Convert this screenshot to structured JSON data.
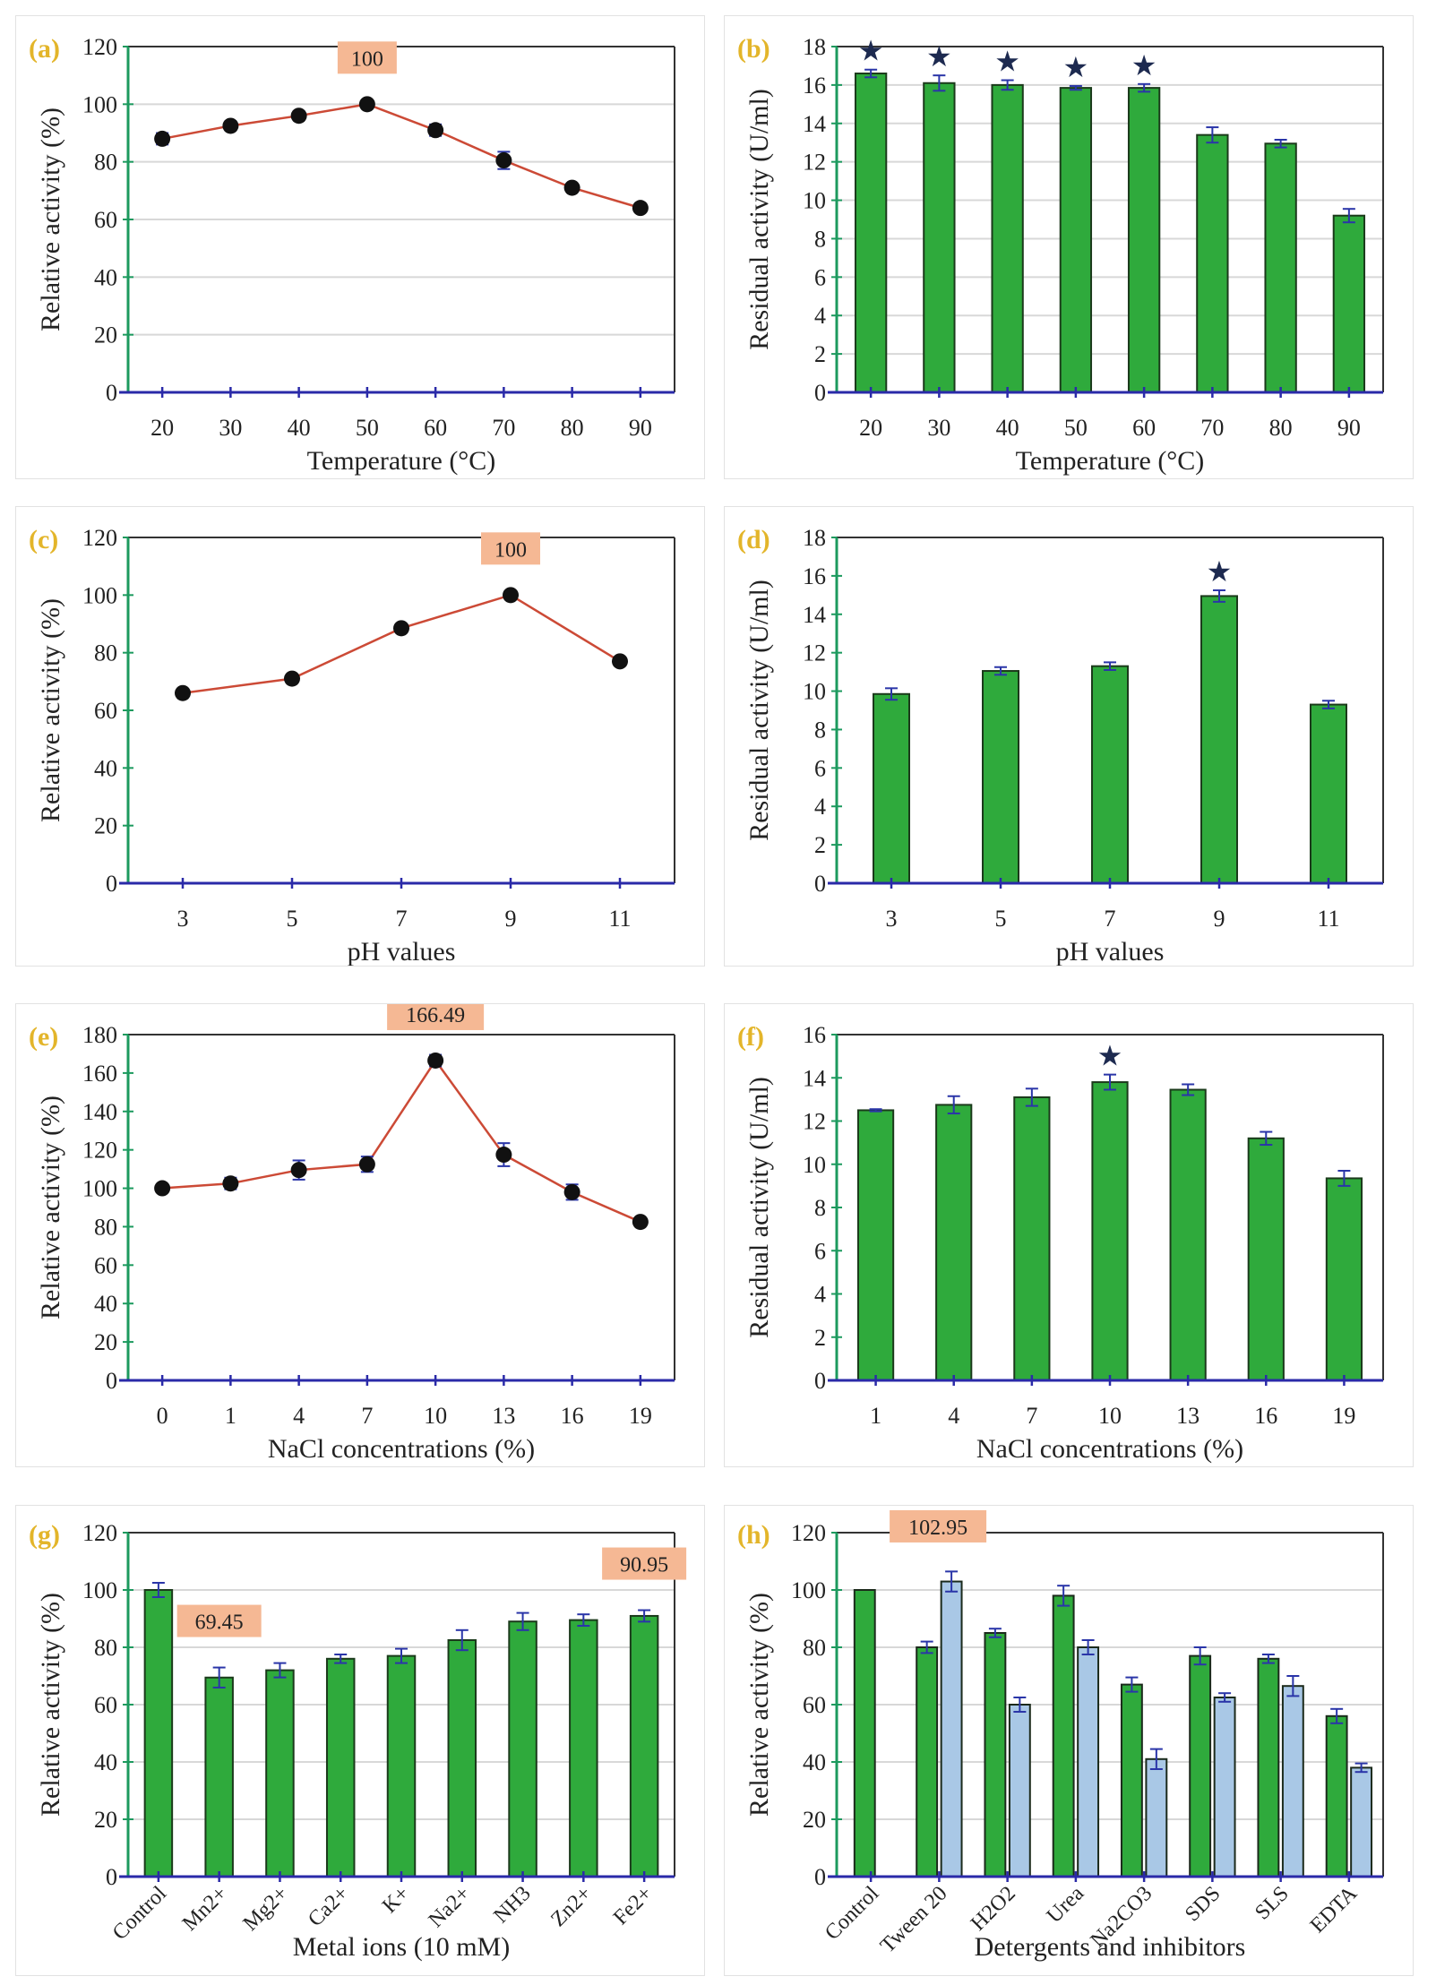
{
  "colors": {
    "bar_green": "#2faa3c",
    "bar_blue": "#a9c8e6",
    "line": "#cc4a36",
    "error_bar": "#2a35a8",
    "annotation_box": "#f5b894",
    "panel_label": "#e3b52a",
    "left_axis": "#1c9a5e",
    "bottom_axis": "#2a2aa8"
  },
  "chart_data": [
    {
      "id": "a",
      "panel_label": "(a)",
      "type": "line",
      "xlabel": "Temperature (°C)",
      "ylabel": "Relative activity (%)",
      "categories": [
        "20",
        "30",
        "40",
        "50",
        "60",
        "70",
        "80",
        "90"
      ],
      "ylim": [
        0,
        120
      ],
      "ystep": 20,
      "yticks": [
        "0",
        "20",
        "40",
        "60",
        "80",
        "100",
        "120"
      ],
      "values": [
        88,
        92.5,
        96,
        100,
        91,
        80.5,
        71,
        64
      ],
      "errors": [
        2,
        1.5,
        1.5,
        1,
        2,
        3,
        1,
        1
      ],
      "annotations": [
        {
          "index": 3,
          "text": "100"
        }
      ],
      "stars": [],
      "grid": true
    },
    {
      "id": "b",
      "panel_label": "(b)",
      "type": "bar",
      "xlabel": "Temperature (°C)",
      "ylabel": "Residual activity (U/ml)",
      "categories": [
        "20",
        "30",
        "40",
        "50",
        "60",
        "70",
        "80",
        "90"
      ],
      "ylim": [
        0,
        18
      ],
      "ystep": 2,
      "yticks": [
        "0",
        "2",
        "4",
        "6",
        "8",
        "10",
        "12",
        "14",
        "16",
        "18"
      ],
      "values": [
        16.6,
        16.1,
        16.0,
        15.85,
        15.85,
        13.4,
        12.95,
        9.2
      ],
      "errors": [
        0.2,
        0.4,
        0.25,
        0.1,
        0.2,
        0.4,
        0.2,
        0.35
      ],
      "annotations": [],
      "stars": [
        0,
        1,
        2,
        3,
        4
      ],
      "grid": true
    },
    {
      "id": "c",
      "panel_label": "(c)",
      "type": "line",
      "xlabel": "pH values",
      "ylabel": "Relative activity (%)",
      "categories": [
        "3",
        "5",
        "7",
        "9",
        "11"
      ],
      "ylim": [
        0,
        120
      ],
      "ystep": 20,
      "yticks": [
        "0",
        "20",
        "40",
        "60",
        "80",
        "100",
        "120"
      ],
      "values": [
        66,
        71,
        88.5,
        100,
        77
      ],
      "errors": [
        1,
        1,
        1,
        1,
        1
      ],
      "annotations": [
        {
          "index": 3,
          "text": "100"
        }
      ],
      "stars": [],
      "grid": false
    },
    {
      "id": "d",
      "panel_label": "(d)",
      "type": "bar",
      "xlabel": "pH values",
      "ylabel": "Residual activity (U/ml)",
      "categories": [
        "3",
        "5",
        "7",
        "9",
        "11"
      ],
      "ylim": [
        0,
        18
      ],
      "ystep": 2,
      "yticks": [
        "0",
        "2",
        "4",
        "6",
        "8",
        "10",
        "12",
        "14",
        "16",
        "18"
      ],
      "values": [
        9.85,
        11.05,
        11.3,
        14.95,
        9.3
      ],
      "errors": [
        0.3,
        0.2,
        0.2,
        0.3,
        0.2
      ],
      "annotations": [],
      "stars": [
        3
      ],
      "grid": false
    },
    {
      "id": "e",
      "panel_label": "(e)",
      "type": "line",
      "xlabel": "NaCl concentrations (%)",
      "ylabel": "Relative activity (%)",
      "categories": [
        "0",
        "1",
        "4",
        "7",
        "10",
        "13",
        "16",
        "19"
      ],
      "ylim": [
        0,
        180
      ],
      "ystep": 20,
      "yticks": [
        "0",
        "20",
        "40",
        "60",
        "80",
        "100",
        "120",
        "140",
        "160",
        "180"
      ],
      "values": [
        100,
        102.5,
        109.5,
        112.5,
        166.49,
        117.5,
        98,
        82.5
      ],
      "errors": [
        1.5,
        3,
        5,
        4,
        3,
        6,
        4,
        2
      ],
      "annotations": [
        {
          "index": 4,
          "text": "166.49"
        }
      ],
      "stars": [],
      "grid": false
    },
    {
      "id": "f",
      "panel_label": "(f)",
      "type": "bar",
      "xlabel": "NaCl concentrations (%)",
      "ylabel": "Residual activity (U/ml)",
      "categories": [
        "1",
        "4",
        "7",
        "10",
        "13",
        "16",
        "19"
      ],
      "ylim": [
        0,
        16
      ],
      "ystep": 2,
      "yticks": [
        "0",
        "2",
        "4",
        "6",
        "8",
        "10",
        "12",
        "14",
        "16"
      ],
      "values": [
        12.5,
        12.75,
        13.1,
        13.8,
        13.45,
        11.2,
        9.35
      ],
      "errors": [
        0.05,
        0.4,
        0.4,
        0.35,
        0.25,
        0.3,
        0.35
      ],
      "annotations": [],
      "stars": [
        3
      ],
      "grid": false
    },
    {
      "id": "g",
      "panel_label": "(g)",
      "type": "bar",
      "xlabel": "Metal ions (10 mM)",
      "ylabel": "Relative activity (%)",
      "categories": [
        "Control",
        "Mn2+",
        "Mg2+",
        "Ca2+",
        "K+",
        "Na2+",
        "NH3",
        "Zn2+",
        "Fe2+"
      ],
      "ylim": [
        0,
        120
      ],
      "ystep": 20,
      "yticks": [
        "0",
        "20",
        "40",
        "60",
        "80",
        "100",
        "120"
      ],
      "values": [
        100,
        69.45,
        72,
        76,
        77,
        82.5,
        89,
        89.5,
        90.95
      ],
      "errors": [
        2.5,
        3.5,
        2.5,
        1.5,
        2.5,
        3.5,
        3,
        2,
        2
      ],
      "annotations": [
        {
          "index": 1,
          "text": "69.45"
        },
        {
          "index": 8,
          "text": "90.95"
        }
      ],
      "stars": [],
      "grid": true,
      "rotate_labels": true
    },
    {
      "id": "h",
      "panel_label": "(h)",
      "type": "grouped_bar",
      "xlabel": "Detergents and inhibitors",
      "ylabel": "Relative activity (%)",
      "categories": [
        "Control",
        "Tween 20",
        "H2O2",
        "Urea",
        "Na2CO3",
        "SDS",
        "SLS",
        "EDTA"
      ],
      "ylim": [
        0,
        120
      ],
      "ystep": 20,
      "yticks": [
        "0",
        "20",
        "40",
        "60",
        "80",
        "100",
        "120"
      ],
      "series": [
        {
          "values": [
            100,
            80,
            85,
            98,
            67,
            77,
            76,
            56
          ],
          "errors": [
            0,
            2,
            1.5,
            3.5,
            2.5,
            3,
            1.5,
            2.5
          ],
          "color": "#2faa3c"
        },
        {
          "values": [
            null,
            102.95,
            60,
            80,
            41,
            62.5,
            66.5,
            38
          ],
          "errors": [
            null,
            3.5,
            2.5,
            2.5,
            3.5,
            1.5,
            3.5,
            1.5
          ],
          "color": "#a9c8e6"
        }
      ],
      "annotations": [
        {
          "series": 1,
          "index": 1,
          "text": "102.95"
        }
      ],
      "stars": [],
      "grid": true,
      "rotate_labels": true
    }
  ]
}
